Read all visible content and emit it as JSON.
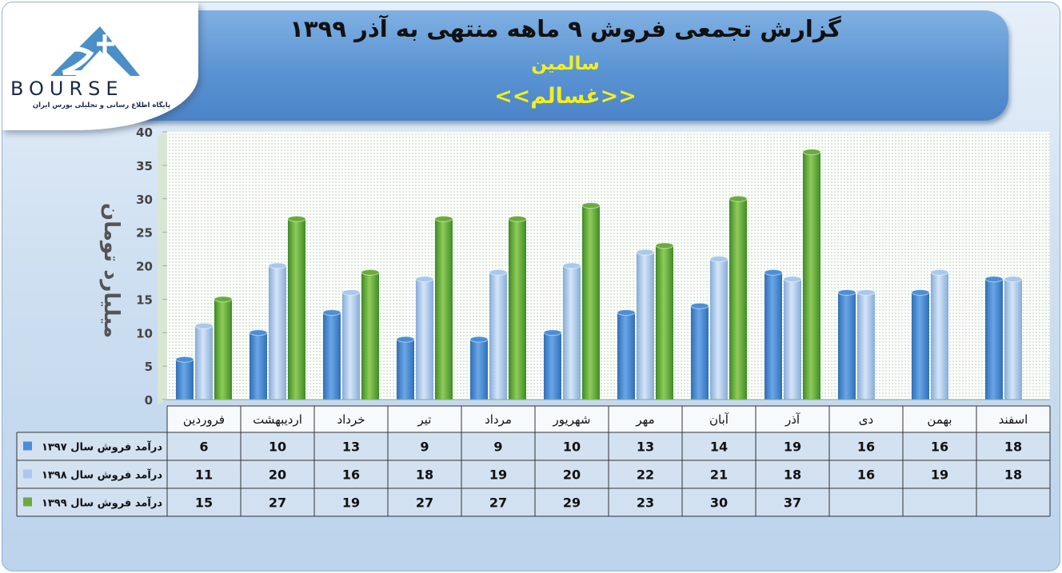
{
  "header": {
    "title": "گزارش تجمعی فروش ۹ ماهه منتهی به آذر ۱۳۹۹",
    "subtitle": "سالمین",
    "product": "<<غسالم>>"
  },
  "logo": {
    "text": "BOURSE",
    "tagline": "پایگاه اطلاع رسانی و تحلیلی بورس ایران"
  },
  "colors": {
    "series_1397": "#4a8fd6",
    "series_1398": "#a9c8ec",
    "series_1399": "#6aab3c"
  },
  "chart_data": {
    "type": "bar",
    "ylabel": "میلیارد تومان",
    "ylim": [
      0,
      40
    ],
    "yticks": [
      0,
      5,
      10,
      15,
      20,
      25,
      30,
      35,
      40
    ],
    "grid": true,
    "legend": "table",
    "categories": [
      "فروردین",
      "اردیبهشت",
      "خرداد",
      "تیر",
      "مرداد",
      "شهریور",
      "مهر",
      "آبان",
      "آذر",
      "دی",
      "بهمن",
      "اسفند"
    ],
    "series": [
      {
        "name": "درآمد فروش سال ۱۳۹۷",
        "values": [
          6,
          10,
          13,
          9,
          9,
          10,
          13,
          14,
          19,
          16,
          16,
          18
        ]
      },
      {
        "name": "درآمد فروش سال ۱۳۹۸",
        "values": [
          11,
          20,
          16,
          18,
          19,
          20,
          22,
          21,
          18,
          16,
          19,
          18
        ]
      },
      {
        "name": "درآمد فروش سال ۱۳۹۹",
        "values": [
          15,
          27,
          19,
          27,
          27,
          29,
          23,
          30,
          37,
          null,
          null,
          null
        ]
      }
    ]
  }
}
